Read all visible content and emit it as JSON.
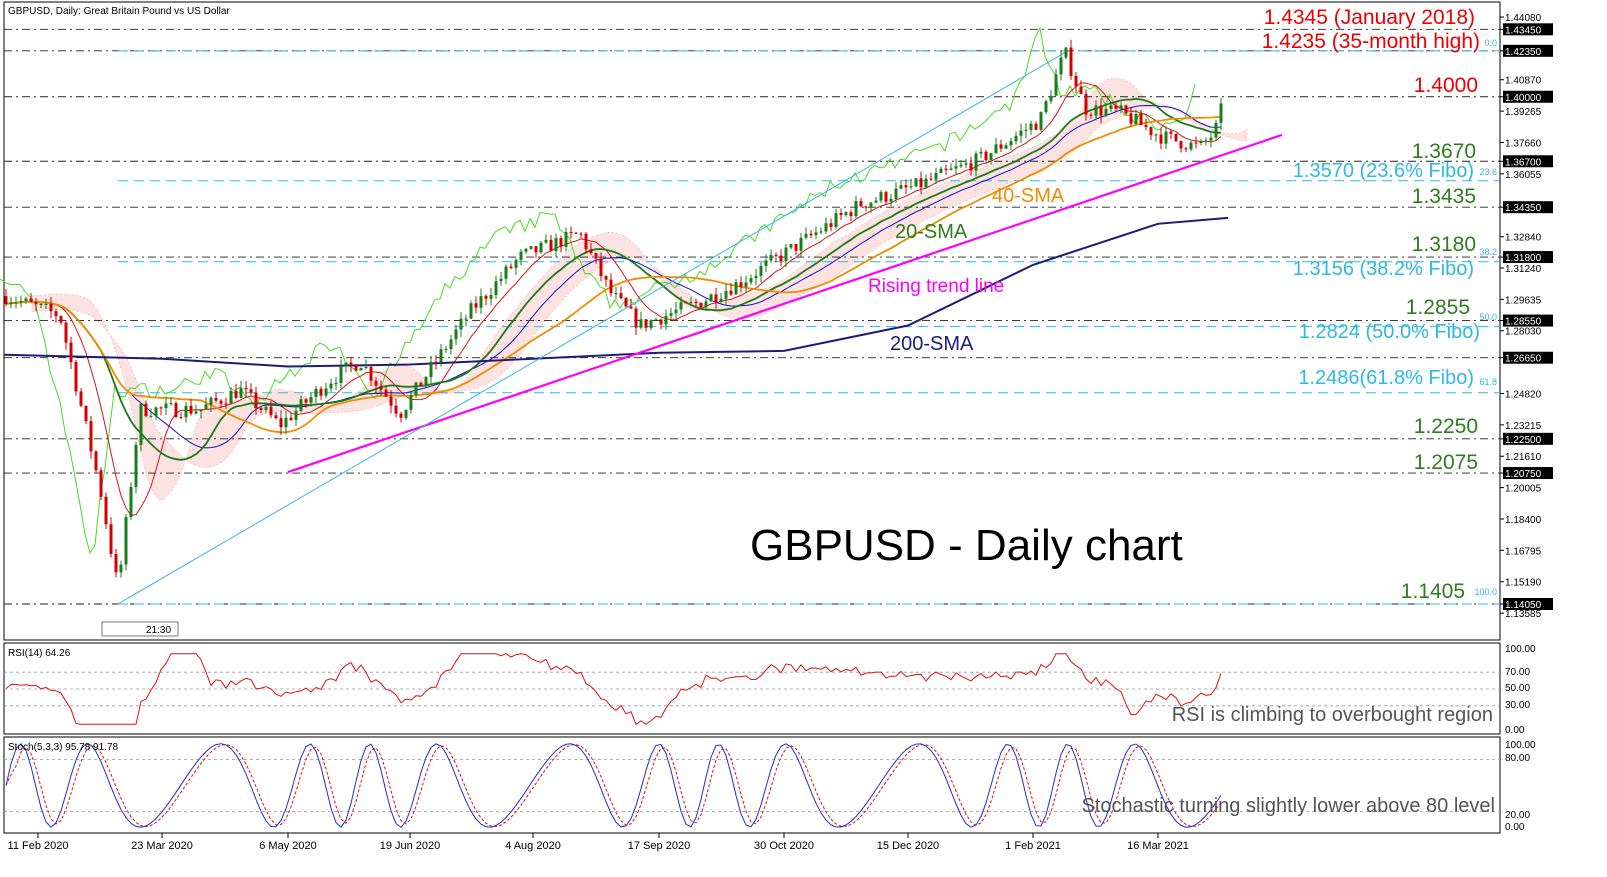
{
  "header": {
    "symbol_line": "GBPUSD, Daily:  Great Britain Pound vs US Dollar",
    "chart_title": "GBPUSD - Daily chart",
    "timer_label": "21:30"
  },
  "colors": {
    "price_up": "#1a7f1a",
    "price_down": "#d40000",
    "sma20": "#1b7a1b",
    "sma40": "#f08c00",
    "sma200": "#1c1c7a",
    "trend_line": "#ff00ff",
    "channel_line": "#3cb4e6",
    "fibo": "#2eb8e6",
    "chikou": "#44dd22",
    "tenkan": "#dd1111",
    "kijun": "#1111cc",
    "cloud": "#f6b0a8",
    "rsi": "#dd1111",
    "stoch_k": "#1f2fd0",
    "stoch_d": "#dd1111",
    "annot_red": "#ee0000",
    "annot_green": "#2e7d1e",
    "annot_orange": "#f08c00"
  },
  "annotations": {
    "jan2018": "1.4345 (January 2018)",
    "high35": "1.4235 (35-month high)",
    "r14000": "1.4000",
    "r13670": "1.3670",
    "fib236": "1.3570 (23.6% Fibo)",
    "r13435": "1.3435",
    "r13180": "1.3180",
    "fib382": "1.3156 (38.2% Fibo)",
    "r12855": "1.2855",
    "fib500": "1.2824 (50.0% Fibo)",
    "fib618": "1.2486(61.8% Fibo)",
    "r12250": "1.2250",
    "r12075": "1.2075",
    "r11405": "1.1405",
    "sma40_label": "40-SMA",
    "sma20_label": "20-SMA",
    "sma200_label": "200-SMA",
    "trend_label": "Rising trend line",
    "fib_small_0": "0.0",
    "fib_small_236": "23.6",
    "fib_small_382": "38.2",
    "fib_small_500": "50.0",
    "fib_small_618": "61.8",
    "fib_small_100": "100.0"
  },
  "rsi_panel": {
    "title": "RSI(14) 64.26",
    "note": "RSI is climbing to overbought region",
    "ticks": [
      "100.00",
      "70.00",
      "50.00",
      "30.00",
      "0.00"
    ]
  },
  "stoch_panel": {
    "title": "Stoch(5,3,3) 95.78 91.78",
    "note": "Stochastic turning slightly lower above 80 level",
    "ticks": [
      "100.00",
      "80.00",
      "20.00",
      "0.00"
    ]
  },
  "chart_data": {
    "type": "line",
    "title": "GBPUSD - Daily chart",
    "instrument": "GBPUSD, Daily:  Great Britain Pound vs US Dollar",
    "ylim": [
      1.1336,
      1.4478
    ],
    "y_ticks": [
      "1.44080",
      "1.43450",
      "1.42350",
      "1.40870",
      "1.40000",
      "1.39265",
      "1.37660",
      "1.36700",
      "1.36055",
      "1.34350",
      "1.32840",
      "1.31800",
      "1.31240",
      "1.29635",
      "1.28550",
      "1.28030",
      "1.26650",
      "1.24820",
      "1.23215",
      "1.22500",
      "1.21610",
      "1.20750",
      "1.20005",
      "1.18400",
      "1.16795",
      "1.15190",
      "1.14050",
      "1.13585"
    ],
    "highlighted_levels": [
      "1.43450",
      "1.42350",
      "1.40000",
      "1.36700",
      "1.34350",
      "1.31800",
      "1.28550",
      "1.26650",
      "1.22500",
      "1.20750",
      "1.14050"
    ],
    "x_tick_labels": [
      "11 Feb 2020",
      "23 Mar 2020",
      "6 May 2020",
      "19 Jun 2020",
      "4 Aug 2020",
      "17 Sep 2020",
      "30 Oct 2020",
      "15 Dec 2020",
      "1 Feb 2021",
      "16 Mar 2021"
    ],
    "horizontal_levels": [
      1.4345,
      1.4235,
      1.4,
      1.367,
      1.3435,
      1.318,
      1.2855,
      1.2665,
      1.225,
      1.2075,
      1.1405
    ],
    "fibonacci_levels": [
      {
        "ratio": "0.0",
        "value": 1.4235
      },
      {
        "ratio": "23.6",
        "value": 1.357
      },
      {
        "ratio": "38.2",
        "value": 1.3156
      },
      {
        "ratio": "50.0",
        "value": 1.2824
      },
      {
        "ratio": "61.8",
        "value": 1.2486
      },
      {
        "ratio": "100.0",
        "value": 1.1405
      }
    ],
    "series": [
      {
        "name": "GBPUSD close",
        "points": [
          [
            "11 Feb 2020",
            1.296
          ],
          [
            "23 Mar 2020",
            1.16
          ],
          [
            "6 May 2020",
            1.235
          ],
          [
            "19 Jun 2020",
            1.237
          ],
          [
            "4 Aug 2020",
            1.31
          ],
          [
            "17 Sep 2020",
            1.292
          ],
          [
            "30 Oct 2020",
            1.294
          ],
          [
            "15 Dec 2020",
            1.346
          ],
          [
            "1 Feb 2021",
            1.371
          ],
          [
            "16 Mar 2021",
            1.389
          ]
        ]
      },
      {
        "name": "20-SMA",
        "points": [
          [
            "11 Feb 2020",
            1.296
          ],
          [
            "23 Mar 2020",
            1.22
          ],
          [
            "6 May 2020",
            1.237
          ],
          [
            "19 Jun 2020",
            1.244
          ],
          [
            "4 Aug 2020",
            1.299
          ],
          [
            "17 Sep 2020",
            1.296
          ],
          [
            "30 Oct 2020",
            1.297
          ],
          [
            "15 Dec 2020",
            1.34
          ],
          [
            "1 Feb 2021",
            1.366
          ],
          [
            "16 Mar 2021",
            1.388
          ]
        ]
      },
      {
        "name": "40-SMA",
        "points": [
          [
            "11 Feb 2020",
            1.297
          ],
          [
            "23 Mar 2020",
            1.262
          ],
          [
            "6 May 2020",
            1.24
          ],
          [
            "19 Jun 2020",
            1.247
          ],
          [
            "4 Aug 2020",
            1.283
          ],
          [
            "17 Sep 2020",
            1.29
          ],
          [
            "30 Oct 2020",
            1.29
          ],
          [
            "15 Dec 2020",
            1.328
          ],
          [
            "1 Feb 2021",
            1.361
          ],
          [
            "16 Mar 2021",
            1.386
          ]
        ]
      },
      {
        "name": "200-SMA",
        "points": [
          [
            "11 Feb 2020",
            1.268
          ],
          [
            "23 Mar 2020",
            1.266
          ],
          [
            "6 May 2020",
            1.262
          ],
          [
            "19 Jun 2020",
            1.263
          ],
          [
            "4 Aug 2020",
            1.266
          ],
          [
            "17 Sep 2020",
            1.269
          ],
          [
            "30 Oct 2020",
            1.27
          ],
          [
            "15 Dec 2020",
            1.283
          ],
          [
            "1 Feb 2021",
            1.314
          ],
          [
            "16 Mar 2021",
            1.335
          ]
        ]
      }
    ],
    "trend_line": {
      "name": "Rising trend line",
      "points": [
        [
          "6 May 2020",
          1.208
        ],
        [
          "16 Mar 2021",
          1.377
        ]
      ]
    },
    "rsi": {
      "name": "RSI(14)",
      "last": 64.26,
      "ylim": [
        0,
        100
      ]
    },
    "stochastic": {
      "name": "Stoch(5,3,3)",
      "k_last": 95.78,
      "d_last": 91.78,
      "ylim": [
        0,
        100
      ]
    },
    "grid": true
  }
}
